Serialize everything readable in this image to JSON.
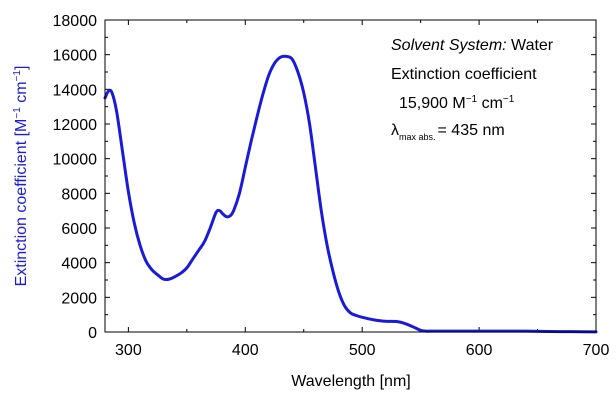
{
  "chart_data": {
    "type": "line",
    "xlabel": "Wavelength [nm]",
    "ylabel": {
      "main": "Extinction coefficient [M",
      "sup1": "−1",
      "mid": " cm",
      "sup2": "−1",
      "end": "]"
    },
    "xlim": [
      280,
      700
    ],
    "ylim": [
      0,
      18000
    ],
    "x_ticks": [
      300,
      400,
      500,
      600,
      700
    ],
    "y_ticks": [
      0,
      2000,
      4000,
      6000,
      8000,
      10000,
      12000,
      14000,
      16000,
      18000
    ],
    "line_color": "#1a1adb",
    "ylabel_color": "#1a1adb",
    "grid": false,
    "series": [
      {
        "x": [
          280,
          283,
          286,
          290,
          295,
          300,
          305,
          310,
          315,
          320,
          325,
          330,
          335,
          340,
          345,
          350,
          355,
          360,
          365,
          370,
          375,
          378,
          381,
          384,
          387,
          390,
          395,
          400,
          405,
          410,
          415,
          420,
          425,
          430,
          435,
          440,
          445,
          450,
          455,
          460,
          465,
          470,
          475,
          480,
          485,
          490,
          495,
          500,
          510,
          520,
          530,
          535,
          540,
          545,
          550,
          555,
          560,
          580,
          600,
          620,
          640,
          660,
          680,
          700
        ],
        "values": [
          13500,
          13900,
          13800,
          12700,
          10400,
          8100,
          6300,
          5000,
          4100,
          3600,
          3300,
          3050,
          3050,
          3200,
          3400,
          3700,
          4200,
          4700,
          5200,
          6000,
          6900,
          7000,
          6800,
          6650,
          6700,
          7000,
          8000,
          9500,
          11000,
          12400,
          13700,
          14800,
          15500,
          15850,
          15900,
          15750,
          15000,
          13800,
          12000,
          9500,
          7000,
          5000,
          3500,
          2300,
          1500,
          1100,
          950,
          850,
          700,
          620,
          600,
          520,
          400,
          250,
          100,
          50,
          50,
          50,
          50,
          50,
          50,
          30,
          20,
          10
        ]
      }
    ],
    "annotations": {
      "solvent_label": "Solvent System:",
      "solvent_value": " Water",
      "ext_label": "Extinction coefficient",
      "ext_value_main": "15,900 M",
      "ext_value_sup1": "−1",
      "ext_value_mid": " cm",
      "ext_value_sup2": "−1",
      "lambda_symbol": "λ",
      "lambda_sub": "max abs.",
      "lambda_value": "= 435 nm"
    }
  }
}
